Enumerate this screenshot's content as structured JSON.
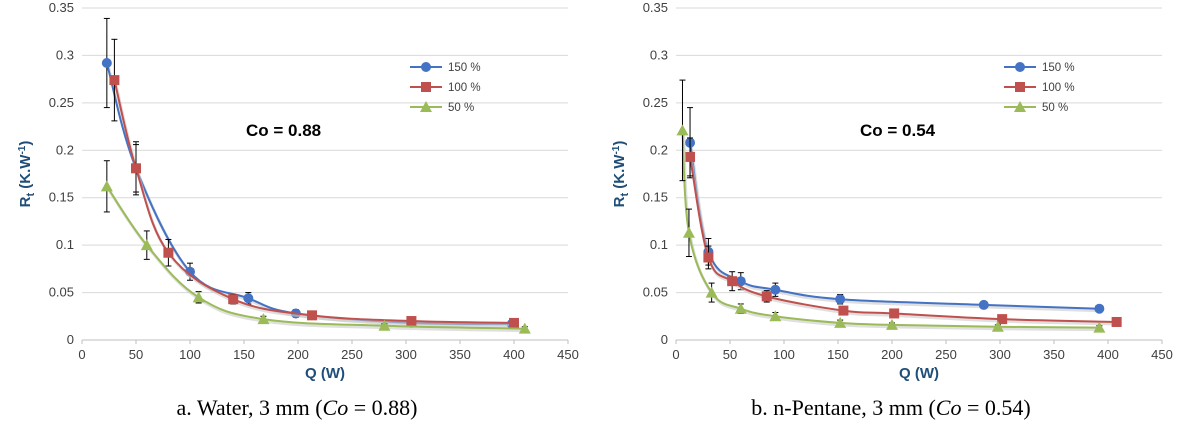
{
  "chart_data": [
    {
      "type": "scatter",
      "panel_id": "panel-a",
      "xlabel": "Q (W)",
      "ylabel": [
        "R",
        "t",
        " (K.W",
        "-1",
        ")"
      ],
      "xlim": [
        0,
        450
      ],
      "ylim": [
        0,
        0.35
      ],
      "x_ticks": [
        "0",
        "50",
        "100",
        "150",
        "200",
        "250",
        "300",
        "350",
        "400",
        "450"
      ],
      "y_ticks": [
        "0",
        "0.05",
        "0.1",
        "0.15",
        "0.2",
        "0.25",
        "0.3",
        "0.35"
      ],
      "grid": "horizontal",
      "legend_position": "right",
      "annotation": "Co = 0.88",
      "caption": [
        "a. Water, 3 mm (",
        "Co",
        " = 0.88)"
      ],
      "series": [
        {
          "name": "150 %",
          "color": "#4472c4",
          "marker": "circle",
          "x": [
            23,
            50,
            100,
            154,
            198,
            305,
            398
          ],
          "y": [
            0.292,
            0.181,
            0.072,
            0.044,
            0.028,
            0.018,
            0.017
          ],
          "err": [
            0.047,
            0.025,
            0.009,
            0.006,
            0.004,
            0.003,
            0.002
          ]
        },
        {
          "name": "100 %",
          "color": "#c0504d",
          "marker": "square",
          "x": [
            30,
            50,
            80,
            140,
            213,
            305,
            400
          ],
          "y": [
            0.274,
            0.181,
            0.092,
            0.043,
            0.026,
            0.02,
            0.018
          ],
          "err": [
            0.043,
            0.028,
            0.014,
            0.005,
            0.003,
            0.002,
            0.002
          ]
        },
        {
          "name": "50 %",
          "color": "#9bbb59",
          "marker": "triangle",
          "x": [
            23,
            60,
            108,
            168,
            280,
            410
          ],
          "y": [
            0.162,
            0.1,
            0.045,
            0.022,
            0.015,
            0.012
          ],
          "err": [
            0.027,
            0.015,
            0.006,
            0.003,
            0.002,
            0.002
          ]
        }
      ]
    },
    {
      "type": "scatter",
      "panel_id": "panel-b",
      "xlabel": "Q (W)",
      "ylabel": [
        "R",
        "t",
        " (K.W",
        "-1",
        ")"
      ],
      "xlim": [
        0,
        450
      ],
      "ylim": [
        0,
        0.35
      ],
      "x_ticks": [
        "0",
        "50",
        "100",
        "150",
        "200",
        "250",
        "300",
        "350",
        "400",
        "450"
      ],
      "y_ticks": [
        "0",
        "0.05",
        "0.1",
        "0.15",
        "0.2",
        "0.25",
        "0.3",
        "0.35"
      ],
      "grid": "horizontal",
      "legend_position": "right",
      "annotation": "Co = 0.54",
      "caption": [
        "b. n-Pentane, 3 mm (",
        "Co",
        " = 0.54)"
      ],
      "series": [
        {
          "name": "150 %",
          "color": "#4472c4",
          "marker": "circle",
          "x": [
            13,
            30,
            60,
            92,
            152,
            285,
            392
          ],
          "y": [
            0.208,
            0.093,
            0.062,
            0.053,
            0.043,
            0.037,
            0.033
          ],
          "err": [
            0.037,
            0.014,
            0.009,
            0.007,
            0.005,
            0.003,
            0.003
          ]
        },
        {
          "name": "100 %",
          "color": "#c0504d",
          "marker": "square",
          "x": [
            13,
            30,
            52,
            84,
            155,
            202,
            302,
            408
          ],
          "y": [
            0.193,
            0.087,
            0.062,
            0.046,
            0.031,
            0.028,
            0.022,
            0.019
          ],
          "err": [
            0.02,
            0.012,
            0.01,
            0.006,
            0.004,
            0.003,
            0.002,
            0.002
          ]
        },
        {
          "name": "50 %",
          "color": "#9bbb59",
          "marker": "triangle",
          "x": [
            6,
            12,
            33,
            60,
            92,
            152,
            200,
            298,
            392
          ],
          "y": [
            0.221,
            0.113,
            0.05,
            0.033,
            0.025,
            0.018,
            0.016,
            0.014,
            0.013
          ],
          "err": [
            0.053,
            0.025,
            0.01,
            0.005,
            0.004,
            0.003,
            0.002,
            0.002,
            0.002
          ]
        }
      ]
    }
  ]
}
